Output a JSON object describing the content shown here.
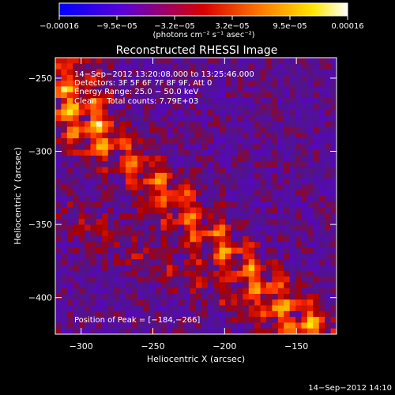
{
  "chart_data": {
    "type": "heatmap",
    "title": "Reconstructed RHESSI Image",
    "xlabel": "Heliocentric X (arcsec)",
    "ylabel": "Heliocentric Y (arcsec)",
    "xlim": [
      -318,
      -122
    ],
    "ylim": [
      -425,
      -236
    ],
    "xticks": [
      -300,
      -250,
      -200,
      -150
    ],
    "yticks": [
      -250,
      -300,
      -350,
      -400
    ],
    "xtick_labels": [
      "−300",
      "−250",
      "−200",
      "−150"
    ],
    "ytick_labels": [
      "−250",
      "−300",
      "−350",
      "−400"
    ],
    "colorbar": {
      "min": -0.00016,
      "max": 0.00016,
      "tick_labels": [
        "−0.00016",
        "−9.5e−05",
        "−3.2e−05",
        "3.2e−05",
        "9.5e−05",
        "0.00016"
      ],
      "unit_label": "(photons cm⁻² s⁻¹ asec⁻²)",
      "colormap": [
        "#0000ff",
        "#5a00d8",
        "#ff0000",
        "#ff9a00",
        "#ffff00",
        "#ffffff"
      ]
    },
    "annotations": [
      "14−Sep−2012 13:20:08.000 to 13:25:46.000",
      "Detectors: 3F 5F 6F 7F 8F 9F, Att 0",
      "Energy Range: 25.0 − 50.0 keV",
      "Clean    Total counts: 7.79E+03",
      "Position of Peak = [−184,−266]"
    ],
    "peak": [
      -184,
      -266
    ],
    "footer_timestamp": "14−Sep−2012 14:10"
  }
}
